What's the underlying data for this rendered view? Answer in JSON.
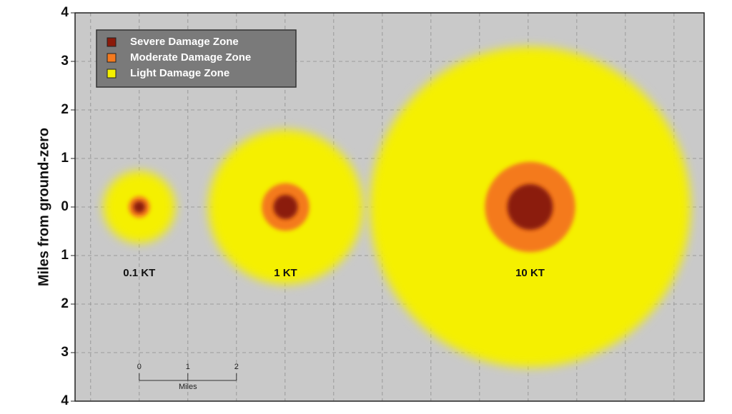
{
  "chart_data": {
    "type": "circles",
    "ylabel": "Miles from ground-zero",
    "ylim": [
      -4,
      4
    ],
    "yticks": [
      4,
      3,
      2,
      1,
      0,
      {
        "value": -1,
        "label": "1"
      },
      {
        "value": -2,
        "label": "2"
      },
      {
        "value": -3,
        "label": "3"
      },
      {
        "value": -4,
        "label": "4"
      }
    ],
    "xlim": [
      -1.32,
      11.62
    ],
    "xticks": [
      -1,
      0,
      1,
      2,
      3,
      4,
      5,
      6,
      7,
      8,
      9,
      10,
      11
    ],
    "grid": true,
    "categories": [
      "0.1 KT",
      "1 KT",
      "10 KT"
    ],
    "x": [
      0,
      3.01,
      8.04
    ],
    "series": [
      {
        "name": "Severe Damage Zone",
        "color": "#8b1a0a",
        "values": [
          0.12,
          0.25,
          0.47
        ]
      },
      {
        "name": "Moderate Damage Zone",
        "color": "#f47a1f",
        "values": [
          0.22,
          0.49,
          0.93
        ]
      },
      {
        "name": "Light Damage Zone",
        "color": "#f5f000",
        "values": [
          0.74,
          1.59,
          3.3
        ]
      }
    ],
    "legend": "upper left",
    "scale_bar": {
      "ticks": [
        0,
        1,
        2
      ],
      "label": "Miles"
    }
  }
}
